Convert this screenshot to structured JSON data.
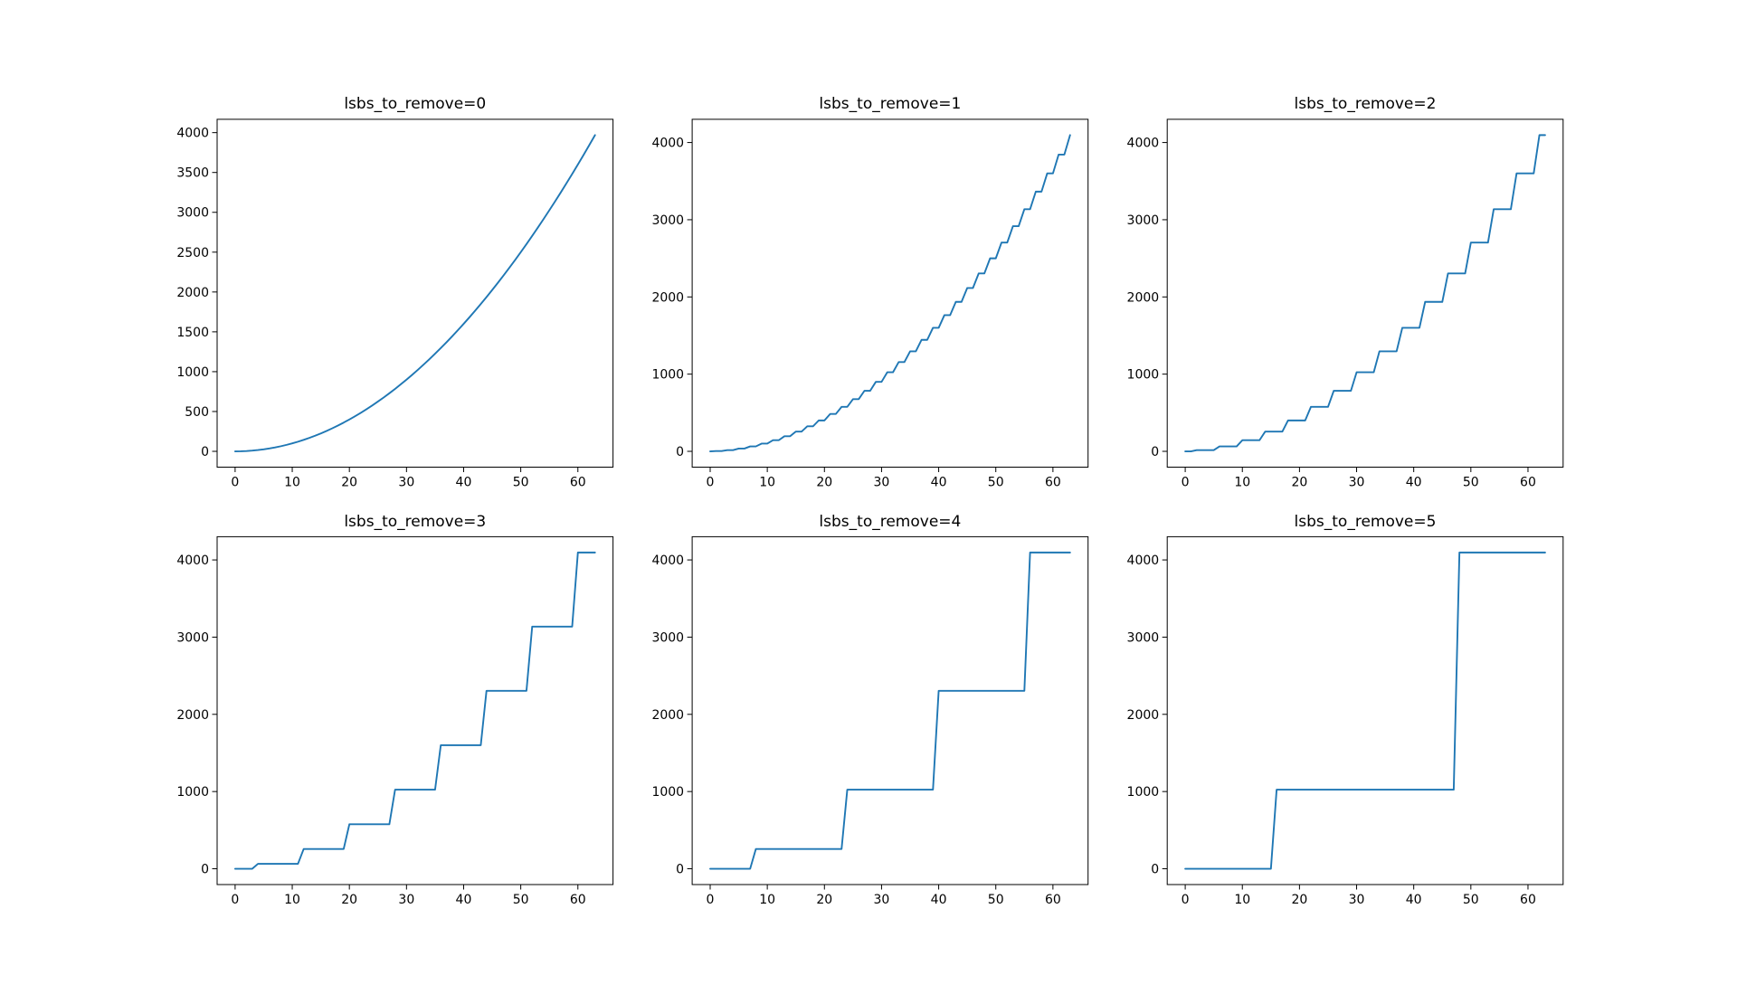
{
  "figure": {
    "background_color": "#ffffff",
    "text_color": "#000000",
    "spine_color": "#000000"
  },
  "chart_data": {
    "type": "line",
    "grid": false,
    "legend": "none",
    "line_color": "#1f77b4",
    "xlabel": "",
    "ylabel": "",
    "xlim": [
      -3.15,
      66.15
    ],
    "xticks": [
      0,
      10,
      20,
      30,
      40,
      50,
      60
    ],
    "x_values": [
      0,
      1,
      2,
      3,
      4,
      5,
      6,
      7,
      8,
      9,
      10,
      11,
      12,
      13,
      14,
      15,
      16,
      17,
      18,
      19,
      20,
      21,
      22,
      23,
      24,
      25,
      26,
      27,
      28,
      29,
      30,
      31,
      32,
      33,
      34,
      35,
      36,
      37,
      38,
      39,
      40,
      41,
      42,
      43,
      44,
      45,
      46,
      47,
      48,
      49,
      50,
      51,
      52,
      53,
      54,
      55,
      56,
      57,
      58,
      59,
      60,
      61,
      62,
      63
    ],
    "subplots": [
      {
        "title": "lsbs_to_remove=0",
        "ylim": [
          -198.45,
          4167.45
        ],
        "yticks": [
          0,
          500,
          1000,
          1500,
          2000,
          2500,
          3000,
          3500,
          4000
        ],
        "y": [
          0,
          1,
          4,
          9,
          16,
          25,
          36,
          49,
          64,
          81,
          100,
          121,
          144,
          169,
          196,
          225,
          256,
          289,
          324,
          361,
          400,
          441,
          484,
          529,
          576,
          625,
          676,
          729,
          784,
          841,
          900,
          961,
          1024,
          1089,
          1156,
          1225,
          1296,
          1369,
          1444,
          1521,
          1600,
          1681,
          1764,
          1849,
          1936,
          2025,
          2116,
          2209,
          2304,
          2401,
          2500,
          2601,
          2704,
          2809,
          2916,
          3025,
          3136,
          3249,
          3364,
          3481,
          3600,
          3721,
          3844,
          3969
        ]
      },
      {
        "title": "lsbs_to_remove=1",
        "ylim": [
          -204.8,
          4300.8
        ],
        "yticks": [
          0,
          1000,
          2000,
          3000,
          4000
        ],
        "y": [
          0,
          4,
          4,
          16,
          16,
          36,
          36,
          64,
          64,
          100,
          100,
          144,
          144,
          196,
          196,
          256,
          256,
          324,
          324,
          400,
          400,
          484,
          484,
          576,
          576,
          676,
          676,
          784,
          784,
          900,
          900,
          1024,
          1024,
          1156,
          1156,
          1296,
          1296,
          1444,
          1444,
          1600,
          1600,
          1764,
          1764,
          1936,
          1936,
          2116,
          2116,
          2304,
          2304,
          2500,
          2500,
          2704,
          2704,
          2916,
          2916,
          3136,
          3136,
          3364,
          3364,
          3600,
          3600,
          3844,
          3844,
          4096
        ]
      },
      {
        "title": "lsbs_to_remove=2",
        "ylim": [
          -204.8,
          4300.8
        ],
        "yticks": [
          0,
          1000,
          2000,
          3000,
          4000
        ],
        "y": [
          0,
          0,
          16,
          16,
          16,
          16,
          64,
          64,
          64,
          64,
          144,
          144,
          144,
          144,
          256,
          256,
          256,
          256,
          400,
          400,
          400,
          400,
          576,
          576,
          576,
          576,
          784,
          784,
          784,
          784,
          1024,
          1024,
          1024,
          1024,
          1296,
          1296,
          1296,
          1296,
          1600,
          1600,
          1600,
          1600,
          1936,
          1936,
          1936,
          1936,
          2304,
          2304,
          2304,
          2304,
          2704,
          2704,
          2704,
          2704,
          3136,
          3136,
          3136,
          3136,
          3600,
          3600,
          3600,
          3600,
          4096,
          4096
        ]
      },
      {
        "title": "lsbs_to_remove=3",
        "ylim": [
          -204.8,
          4300.8
        ],
        "yticks": [
          0,
          1000,
          2000,
          3000,
          4000
        ],
        "y": [
          0,
          0,
          0,
          0,
          64,
          64,
          64,
          64,
          64,
          64,
          64,
          64,
          256,
          256,
          256,
          256,
          256,
          256,
          256,
          256,
          576,
          576,
          576,
          576,
          576,
          576,
          576,
          576,
          1024,
          1024,
          1024,
          1024,
          1024,
          1024,
          1024,
          1024,
          1600,
          1600,
          1600,
          1600,
          1600,
          1600,
          1600,
          1600,
          2304,
          2304,
          2304,
          2304,
          2304,
          2304,
          2304,
          2304,
          3136,
          3136,
          3136,
          3136,
          3136,
          3136,
          3136,
          3136,
          4096,
          4096,
          4096,
          4096
        ]
      },
      {
        "title": "lsbs_to_remove=4",
        "ylim": [
          -204.8,
          4300.8
        ],
        "yticks": [
          0,
          1000,
          2000,
          3000,
          4000
        ],
        "y": [
          0,
          0,
          0,
          0,
          0,
          0,
          0,
          0,
          256,
          256,
          256,
          256,
          256,
          256,
          256,
          256,
          256,
          256,
          256,
          256,
          256,
          256,
          256,
          256,
          1024,
          1024,
          1024,
          1024,
          1024,
          1024,
          1024,
          1024,
          1024,
          1024,
          1024,
          1024,
          1024,
          1024,
          1024,
          1024,
          2304,
          2304,
          2304,
          2304,
          2304,
          2304,
          2304,
          2304,
          2304,
          2304,
          2304,
          2304,
          2304,
          2304,
          2304,
          2304,
          4096,
          4096,
          4096,
          4096,
          4096,
          4096,
          4096,
          4096
        ]
      },
      {
        "title": "lsbs_to_remove=5",
        "ylim": [
          -204.8,
          4300.8
        ],
        "yticks": [
          0,
          1000,
          2000,
          3000,
          4000
        ],
        "y": [
          0,
          0,
          0,
          0,
          0,
          0,
          0,
          0,
          0,
          0,
          0,
          0,
          0,
          0,
          0,
          0,
          1024,
          1024,
          1024,
          1024,
          1024,
          1024,
          1024,
          1024,
          1024,
          1024,
          1024,
          1024,
          1024,
          1024,
          1024,
          1024,
          1024,
          1024,
          1024,
          1024,
          1024,
          1024,
          1024,
          1024,
          1024,
          1024,
          1024,
          1024,
          1024,
          1024,
          1024,
          1024,
          4096,
          4096,
          4096,
          4096,
          4096,
          4096,
          4096,
          4096,
          4096,
          4096,
          4096,
          4096,
          4096,
          4096,
          4096,
          4096
        ]
      }
    ]
  }
}
